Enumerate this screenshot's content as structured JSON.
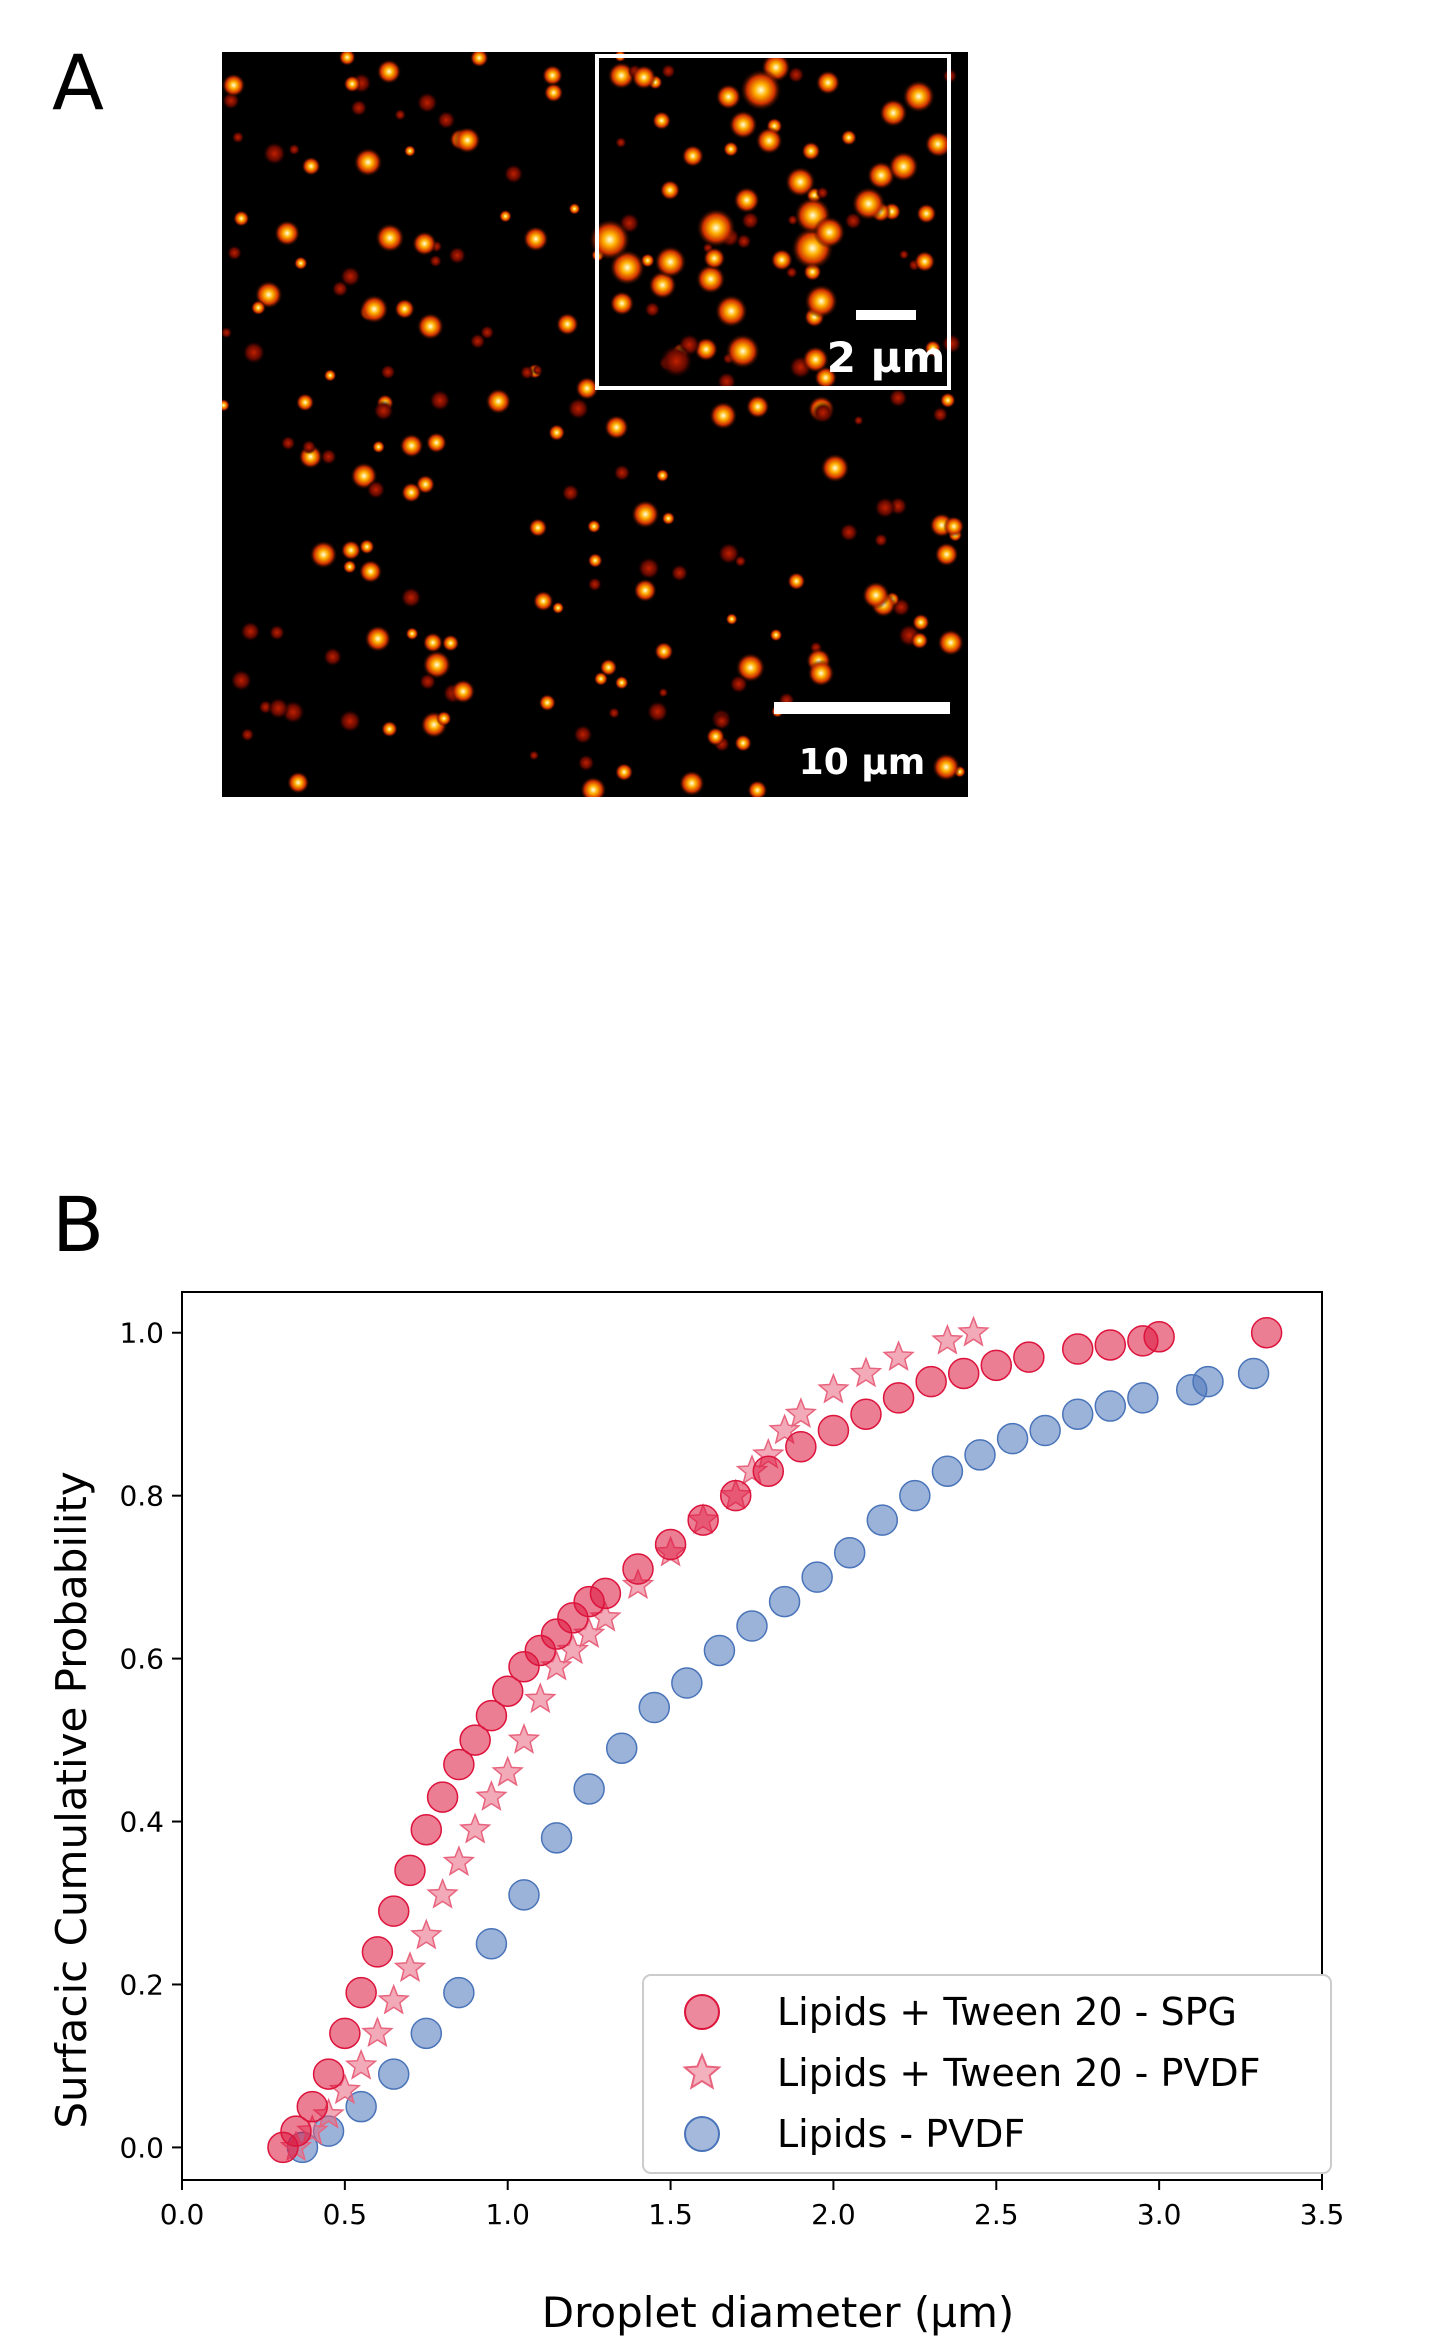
{
  "panel_a": {
    "letter": "A",
    "scale_bar_main": "10 µm",
    "scale_bar_inset": "2 µm"
  },
  "panel_b": {
    "letter": "B"
  },
  "colors": {
    "spg": "#dc143c",
    "pvdf_tween": "#e8647e",
    "pvdf_lipids": "#4a74b9",
    "micrograph_bg": "#000000"
  },
  "chart_data": {
    "type": "scatter",
    "title": "",
    "xlabel": "Droplet diameter (µm)",
    "ylabel": "Surfacic Cumulative Probability",
    "xlim": [
      0.0,
      3.5
    ],
    "ylim": [
      -0.04,
      1.05
    ],
    "xticks": [
      0.0,
      0.5,
      1.0,
      1.5,
      2.0,
      2.5,
      3.0,
      3.5
    ],
    "xtick_labels": [
      "0.0",
      "0.5",
      "1.0",
      "1.5",
      "2.0",
      "2.5",
      "3.0",
      "3.5"
    ],
    "yticks": [
      0.0,
      0.2,
      0.4,
      0.6,
      0.8,
      1.0
    ],
    "ytick_labels": [
      "0.0",
      "0.2",
      "0.4",
      "0.6",
      "0.8",
      "1.0"
    ],
    "legend_position": "lower-right",
    "series": [
      {
        "name": "Lipids + Tween 20 - SPG",
        "marker": "circle",
        "color": "#dc143c",
        "x": [
          0.31,
          0.35,
          0.4,
          0.45,
          0.5,
          0.55,
          0.6,
          0.65,
          0.7,
          0.75,
          0.8,
          0.85,
          0.9,
          0.95,
          1.0,
          1.05,
          1.1,
          1.15,
          1.2,
          1.25,
          1.3,
          1.4,
          1.5,
          1.6,
          1.7,
          1.8,
          1.9,
          2.0,
          2.1,
          2.2,
          2.3,
          2.4,
          2.5,
          2.6,
          2.75,
          2.85,
          2.95,
          3.0,
          3.33
        ],
        "y": [
          0.0,
          0.02,
          0.05,
          0.09,
          0.14,
          0.19,
          0.24,
          0.29,
          0.34,
          0.39,
          0.43,
          0.47,
          0.5,
          0.53,
          0.56,
          0.59,
          0.61,
          0.63,
          0.65,
          0.67,
          0.68,
          0.71,
          0.74,
          0.77,
          0.8,
          0.83,
          0.86,
          0.88,
          0.9,
          0.92,
          0.94,
          0.95,
          0.96,
          0.97,
          0.98,
          0.985,
          0.99,
          0.995,
          1.0
        ]
      },
      {
        "name": "Lipids + Tween 20 - PVDF",
        "marker": "star",
        "color": "#e8647e",
        "x": [
          0.35,
          0.4,
          0.45,
          0.5,
          0.55,
          0.6,
          0.65,
          0.7,
          0.75,
          0.8,
          0.85,
          0.9,
          0.95,
          1.0,
          1.05,
          1.1,
          1.15,
          1.2,
          1.25,
          1.3,
          1.4,
          1.5,
          1.6,
          1.7,
          1.75,
          1.8,
          1.85,
          1.9,
          2.0,
          2.1,
          2.2,
          2.35,
          2.43
        ],
        "y": [
          0.0,
          0.02,
          0.04,
          0.07,
          0.1,
          0.14,
          0.18,
          0.22,
          0.26,
          0.31,
          0.35,
          0.39,
          0.43,
          0.46,
          0.5,
          0.55,
          0.59,
          0.61,
          0.63,
          0.65,
          0.69,
          0.73,
          0.77,
          0.8,
          0.83,
          0.85,
          0.88,
          0.9,
          0.93,
          0.95,
          0.97,
          0.99,
          1.0
        ]
      },
      {
        "name": "Lipids - PVDF",
        "marker": "circle",
        "color": "#4a74b9",
        "x": [
          0.37,
          0.45,
          0.55,
          0.65,
          0.75,
          0.85,
          0.95,
          1.05,
          1.15,
          1.25,
          1.35,
          1.45,
          1.55,
          1.65,
          1.75,
          1.85,
          1.95,
          2.05,
          2.15,
          2.25,
          2.35,
          2.45,
          2.55,
          2.65,
          2.75,
          2.85,
          2.95,
          3.1,
          3.15,
          3.29
        ],
        "y": [
          0.0,
          0.02,
          0.05,
          0.09,
          0.14,
          0.19,
          0.25,
          0.31,
          0.38,
          0.44,
          0.49,
          0.54,
          0.57,
          0.61,
          0.64,
          0.67,
          0.7,
          0.73,
          0.77,
          0.8,
          0.83,
          0.85,
          0.87,
          0.88,
          0.9,
          0.91,
          0.92,
          0.93,
          0.94,
          0.95
        ]
      }
    ]
  }
}
